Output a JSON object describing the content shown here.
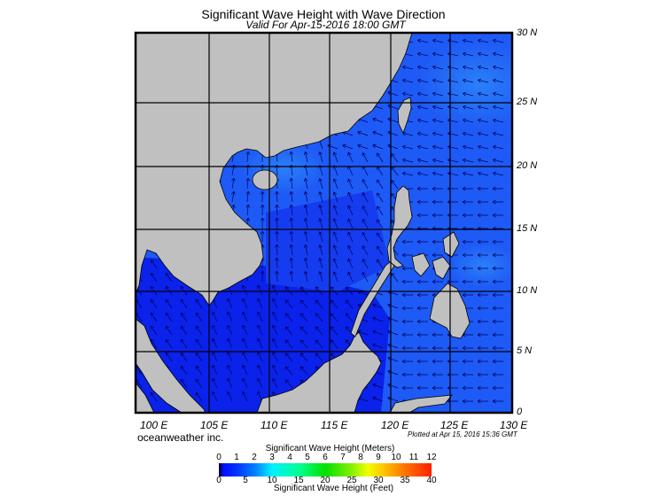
{
  "header": {
    "title": "Significant Wave Height with Wave Direction",
    "subtitle": "Valid For Apr-15-2016 18:00 GMT"
  },
  "map": {
    "region": "South China Sea",
    "lat_labels": [
      "30 N",
      "25 N",
      "20 N",
      "15 N",
      "10 N",
      "5 N",
      "0"
    ],
    "lon_labels": [
      "100 E",
      "105 E",
      "110 E",
      "115 E",
      "120 E",
      "125 E",
      "130 E"
    ],
    "land_color": "#c0c0c0",
    "ocean_colors": [
      "#0a14e6",
      "#0a3cf0",
      "#1e5af5",
      "#2a7af8"
    ],
    "arrow_color": "#00005a"
  },
  "footer": {
    "credit": "oceanweather inc.",
    "plotted": "Plotted at Apr 15, 2016 15:36 GMT"
  },
  "legend": {
    "title_meters": "Significant Wave Height (Meters)",
    "title_feet": "Significant Wave Height (Feet)",
    "meters_ticks": [
      "0",
      "1",
      "2",
      "3",
      "4",
      "5",
      "6",
      "7",
      "8",
      "9",
      "10",
      "11",
      "12"
    ],
    "feet_ticks": [
      "0",
      "5",
      "10",
      "15",
      "20",
      "25",
      "30",
      "35",
      "40"
    ]
  }
}
